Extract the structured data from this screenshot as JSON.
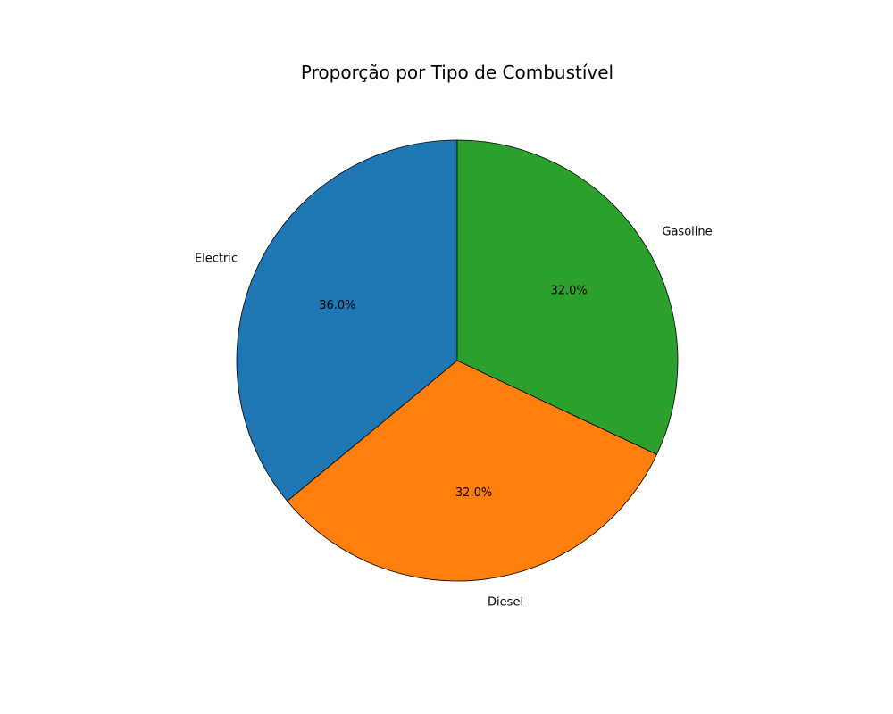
{
  "chart_data": {
    "type": "pie",
    "title": "Proporção por Tipo de Combustível",
    "categories": [
      "Electric",
      "Diesel",
      "Gasoline"
    ],
    "values": [
      36.0,
      32.0,
      32.0
    ],
    "percent_labels": [
      "36.0%",
      "32.0%",
      "32.0%"
    ],
    "colors": [
      "#1f77b4",
      "#ff7f0e",
      "#2ca02c"
    ],
    "start_angle_deg": 90,
    "direction": "counterclockwise",
    "edge_color": "#000000",
    "legend": "none"
  }
}
